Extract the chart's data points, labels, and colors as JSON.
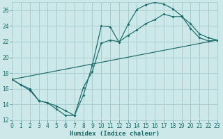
{
  "bg_color": "#cce8e8",
  "grid_color": "#aacccc",
  "line_color": "#1a6b6b",
  "xlabel": "Humidex (Indice chaleur)",
  "xlim": [
    0,
    23
  ],
  "ylim": [
    12,
    27
  ],
  "xticks": [
    0,
    1,
    2,
    3,
    4,
    5,
    6,
    7,
    8,
    9,
    10,
    11,
    12,
    13,
    14,
    15,
    16,
    17,
    18,
    19,
    20,
    21,
    22,
    23
  ],
  "yticks": [
    12,
    14,
    16,
    18,
    20,
    22,
    24,
    26
  ],
  "line1_x": [
    0,
    1,
    2,
    3,
    4,
    5,
    6,
    7,
    8,
    9,
    10,
    11,
    12,
    13,
    14,
    15,
    16,
    17,
    18,
    19,
    20,
    21,
    22,
    23
  ],
  "line1_y": [
    17.2,
    16.5,
    15.8,
    14.5,
    14.2,
    13.4,
    12.6,
    12.6,
    15.2,
    19.0,
    24.0,
    23.9,
    21.9,
    24.2,
    26.1,
    26.7,
    27.0,
    26.8,
    26.2,
    25.3,
    23.7,
    22.5,
    22.1,
    22.2
  ],
  "line2_x": [
    0,
    1,
    2,
    3,
    4,
    5,
    6,
    7,
    8,
    9,
    10,
    11,
    12,
    13,
    14,
    15,
    16,
    17,
    18,
    19,
    20,
    21,
    22,
    23
  ],
  "line2_y": [
    17.2,
    16.5,
    16.0,
    14.5,
    14.2,
    13.8,
    13.2,
    12.6,
    16.2,
    18.2,
    21.8,
    22.2,
    22.0,
    22.8,
    23.5,
    24.3,
    24.8,
    25.5,
    25.2,
    25.2,
    24.3,
    23.0,
    22.5,
    22.2
  ],
  "line3_x": [
    0,
    23
  ],
  "line3_y": [
    17.2,
    22.2
  ]
}
